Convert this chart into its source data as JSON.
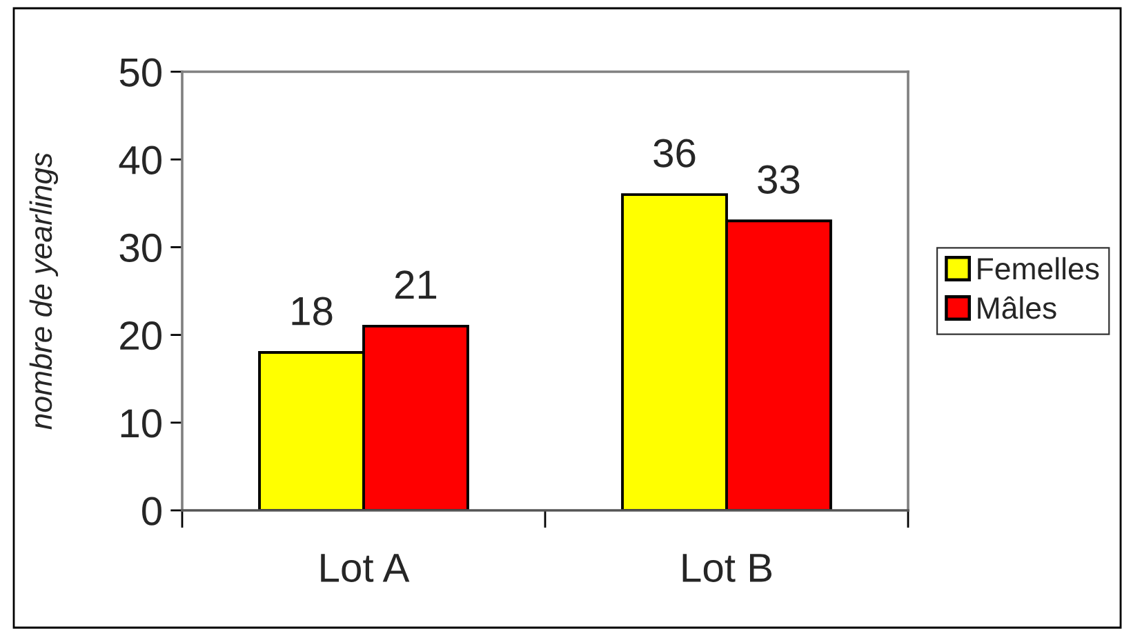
{
  "chart_data": {
    "type": "bar",
    "ylabel": "nombre de yearlings",
    "categories": [
      "Lot A",
      "Lot B"
    ],
    "series": [
      {
        "name": "Femelles",
        "color": "#ffff00",
        "values": [
          18,
          36
        ]
      },
      {
        "name": "Mâles",
        "color": "#ff0000",
        "values": [
          21,
          33
        ]
      }
    ],
    "ylim": [
      0,
      50
    ],
    "yticks": [
      0,
      10,
      20,
      30,
      40,
      50
    ],
    "data_labels": true,
    "legend": "right"
  }
}
